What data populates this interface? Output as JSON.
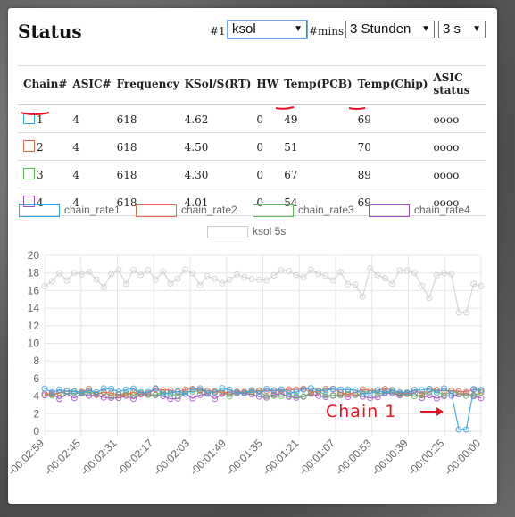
{
  "header": {
    "title": "Status"
  },
  "controls": {
    "device_label": "#1:",
    "device_value": "ksol",
    "mins_label": "#mins:",
    "range_value": "3 Stunden",
    "interval_value": "3 s"
  },
  "table": {
    "columns": [
      "Chain#",
      "ASIC#",
      "Frequency",
      "KSol/S(RT)",
      "HW",
      "Temp(PCB)",
      "Temp(Chip)",
      "ASIC status"
    ],
    "rows": [
      {
        "chain": "1",
        "asic": "4",
        "freq": "618",
        "ksol": "4.62",
        "hw": "0",
        "pcb": "49",
        "chip": "69",
        "status": "oooo",
        "color": "#36a2eb"
      },
      {
        "chain": "2",
        "asic": "4",
        "freq": "618",
        "ksol": "4.50",
        "hw": "0",
        "pcb": "51",
        "chip": "70",
        "status": "oooo",
        "color": "#e46a4a"
      },
      {
        "chain": "3",
        "asic": "4",
        "freq": "618",
        "ksol": "4.30",
        "hw": "0",
        "pcb": "67",
        "chip": "89",
        "status": "oooo",
        "color": "#5cb85c"
      },
      {
        "chain": "4",
        "asic": "4",
        "freq": "618",
        "ksol": "4.01",
        "hw": "0",
        "pcb": "54",
        "chip": "69",
        "status": "oooo",
        "color": "#9b4fb5"
      }
    ]
  },
  "legend": [
    {
      "label": "chain_rate1",
      "color": "#36a2eb"
    },
    {
      "label": "chain_rate2",
      "color": "#e46a4a"
    },
    {
      "label": "chain_rate3",
      "color": "#5cb85c"
    },
    {
      "label": "chain_rate4",
      "color": "#a64dc9"
    },
    {
      "label": "ksol 5s",
      "color": "#cccccc"
    }
  ],
  "chart_data": {
    "type": "line",
    "ylim": [
      0,
      20
    ],
    "yticks": [
      0,
      2,
      4,
      6,
      8,
      10,
      12,
      14,
      16,
      18,
      20
    ],
    "xticks": [
      "-00:02:59",
      "-00:02:45",
      "-00:02:31",
      "-00:02:17",
      "-00:02:03",
      "-00:01:49",
      "-00:01:35",
      "-00:01:21",
      "-00:01:07",
      "-00:00:53",
      "-00:00:39",
      "-00:00:25",
      "-00:00:00"
    ],
    "series": [
      {
        "name": "chain_rate1",
        "baseline": 4.6,
        "dip": [
          {
            "at": 0.955,
            "value": 2.5
          },
          {
            "at": 0.96,
            "value": 0.2
          }
        ]
      },
      {
        "name": "chain_rate2",
        "baseline": 4.5
      },
      {
        "name": "chain_rate3",
        "baseline": 4.3
      },
      {
        "name": "chain_rate4",
        "baseline": 4.0
      },
      {
        "name": "ksol 5s",
        "baseline": 17.5,
        "dip": [
          {
            "at": 0.955,
            "value": 13.5
          }
        ]
      }
    ]
  },
  "annotation": {
    "text": "Chain 1"
  }
}
